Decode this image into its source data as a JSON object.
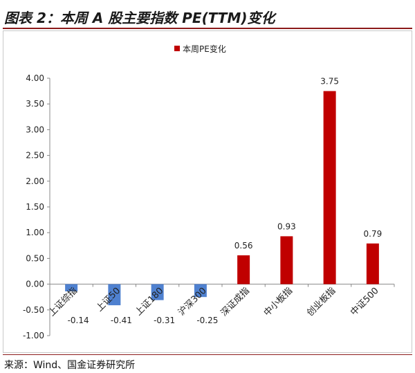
{
  "title": "图表 2：本周 A 股主要指数 PE(TTM)变化",
  "source": "来源：Wind、国金证券研究所",
  "colors": {
    "negative": "#4f81d0",
    "positive": "#c00000",
    "axis": "#888888",
    "title_rule": "#8b1a1a"
  },
  "chart_data": {
    "type": "bar",
    "title": "",
    "xlabel": "",
    "ylabel": "",
    "categories": [
      "上证综指",
      "上证50",
      "上证180",
      "沪深300",
      "深证成指",
      "中小板指",
      "创业板指",
      "中证500"
    ],
    "series": [
      {
        "name": "本周PE变化",
        "values": [
          -0.14,
          -0.41,
          -0.31,
          -0.25,
          0.56,
          0.93,
          3.75,
          0.79
        ]
      }
    ],
    "data_labels": [
      "-0.14",
      "-0.41",
      "-0.31",
      "-0.25",
      "0.56",
      "0.93",
      "3.75",
      "0.79"
    ],
    "ylim": [
      -1.0,
      4.0
    ],
    "yticks": [
      "4.00",
      "3.50",
      "3.00",
      "2.50",
      "2.00",
      "1.50",
      "1.00",
      "0.50",
      "0.00",
      "-0.50",
      "-1.00"
    ],
    "legend_position": "top-center",
    "grid": false
  }
}
